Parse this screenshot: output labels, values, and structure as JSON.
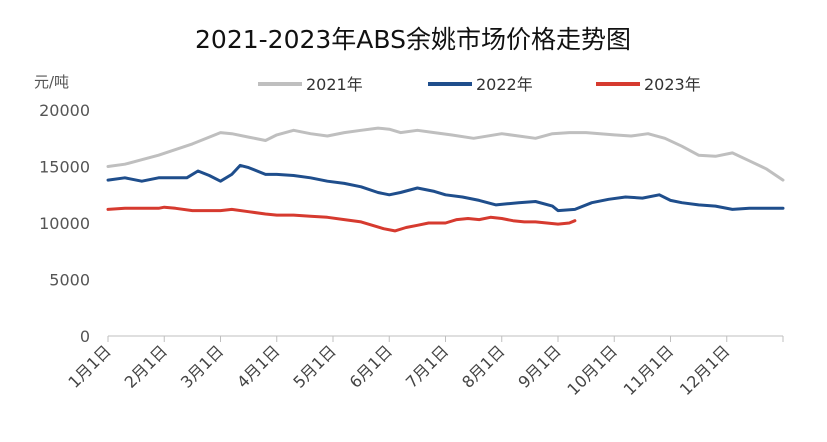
{
  "chart_data": {
    "type": "line",
    "title": "2021-2023年ABS余姚市场价格走势图",
    "ylabel": "元/吨",
    "xlabel": "",
    "ylim": [
      0,
      20000
    ],
    "yticks": [
      "0",
      "5000",
      "10000",
      "15000",
      "20000"
    ],
    "categories": [
      "1月1日",
      "2月1日",
      "3月1日",
      "4月1日",
      "5月1日",
      "6月1日",
      "7月1日",
      "8月1日",
      "9月1日",
      "10月1日",
      "11月1日",
      "12月1日"
    ],
    "legend_position": "top",
    "grid": false,
    "series": [
      {
        "name": "2021年",
        "color": "#bfbfbf",
        "x": [
          0,
          0.3,
          0.6,
          0.9,
          1.2,
          1.5,
          1.8,
          2.0,
          2.2,
          2.5,
          2.8,
          3.0,
          3.3,
          3.6,
          3.9,
          4.2,
          4.5,
          4.8,
          5.0,
          5.2,
          5.5,
          5.8,
          6.1,
          6.5,
          7.0,
          7.3,
          7.6,
          7.9,
          8.2,
          8.5,
          9.0,
          9.3,
          9.6,
          9.9,
          10.2,
          10.5,
          10.8,
          11.1,
          11.4,
          11.7,
          12.0
        ],
        "values": [
          15000,
          15200,
          15600,
          16000,
          16500,
          17000,
          17600,
          18000,
          17900,
          17600,
          17300,
          17800,
          18200,
          17900,
          17700,
          18000,
          18200,
          18400,
          18300,
          18000,
          18200,
          18000,
          17800,
          17500,
          17900,
          17700,
          17500,
          17900,
          18000,
          18000,
          17800,
          17700,
          17900,
          17500,
          16800,
          16000,
          15900,
          16200,
          15500,
          14800,
          13800
        ]
      },
      {
        "name": "2022年",
        "color": "#1f4e8c",
        "x": [
          0,
          0.3,
          0.6,
          0.9,
          1.2,
          1.4,
          1.6,
          1.8,
          2.0,
          2.2,
          2.35,
          2.5,
          2.8,
          3.0,
          3.3,
          3.6,
          3.9,
          4.2,
          4.5,
          4.8,
          5.0,
          5.2,
          5.5,
          5.8,
          6.0,
          6.3,
          6.6,
          6.9,
          7.1,
          7.3,
          7.6,
          7.9,
          8.0,
          8.3,
          8.6,
          8.9,
          9.2,
          9.5,
          9.8,
          10.0,
          10.2,
          10.5,
          10.8,
          11.1,
          11.4,
          11.7,
          12.0
        ],
        "values": [
          13800,
          14000,
          13700,
          14000,
          14000,
          14000,
          14600,
          14200,
          13700,
          14300,
          15100,
          14900,
          14300,
          14300,
          14200,
          14000,
          13700,
          13500,
          13200,
          12700,
          12500,
          12700,
          13100,
          12800,
          12500,
          12300,
          12000,
          11600,
          11700,
          11800,
          11900,
          11500,
          11100,
          11200,
          11800,
          12100,
          12300,
          12200,
          12500,
          12000,
          11800,
          11600,
          11500,
          11200,
          11300,
          11300,
          11300
        ]
      },
      {
        "name": "2023年",
        "color": "#d63a2f",
        "x": [
          0,
          0.3,
          0.6,
          0.9,
          1.0,
          1.2,
          1.5,
          1.8,
          2.0,
          2.2,
          2.5,
          2.8,
          3.0,
          3.3,
          3.6,
          3.9,
          4.2,
          4.5,
          4.7,
          4.9,
          5.1,
          5.3,
          5.5,
          5.7,
          6.0,
          6.2,
          6.4,
          6.6,
          6.8,
          7.0,
          7.2,
          7.4,
          7.6,
          7.8,
          8.0,
          8.2,
          8.3
        ],
        "values": [
          11200,
          11300,
          11300,
          11300,
          11400,
          11300,
          11100,
          11100,
          11100,
          11200,
          11000,
          10800,
          10700,
          10700,
          10600,
          10500,
          10300,
          10100,
          9800,
          9500,
          9300,
          9600,
          9800,
          10000,
          10000,
          10300,
          10400,
          10300,
          10500,
          10400,
          10200,
          10100,
          10100,
          10000,
          9900,
          10000,
          10200
        ]
      }
    ]
  }
}
